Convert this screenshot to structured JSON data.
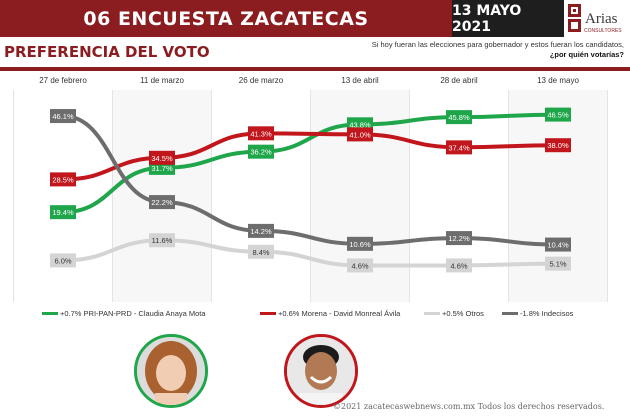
{
  "header": {
    "title": "06 ENCUESTA ZACATECAS",
    "date": "13 MAYO 2021",
    "logo_text": "Arias",
    "logo_sub": "CONSULTORES"
  },
  "section": {
    "title": "PREFERENCIA DEL VOTO",
    "question_line1": "Si hoy fueran las elecciones para gobernador y estos fueran los candidatos,",
    "question_line2": "¿por quién votarías?"
  },
  "chart_data": {
    "type": "line",
    "categories": [
      "27 de febrero",
      "11 de marzo",
      "26 de marzo",
      "13 de abril",
      "28 de abril",
      "13 de mayo"
    ],
    "ylim": [
      0,
      50
    ],
    "grid": "vertical",
    "legend_position": "bottom",
    "series": [
      {
        "name": "+0.7% PRI-PAN-PRD - Claudia Anaya Mota",
        "color": "#1fa64a",
        "values": [
          19.4,
          31.7,
          36.2,
          43.8,
          45.8,
          46.5
        ],
        "labels": [
          "19.4%",
          "31.7%",
          "36.2%",
          "43.8%",
          "45.8%",
          "46.5%"
        ]
      },
      {
        "name": "+0.6% Morena - David Monreal Ávila",
        "color": "#c0161c",
        "values": [
          28.5,
          34.5,
          41.3,
          41.0,
          37.4,
          38.0
        ],
        "labels": [
          "28.5%",
          "34.5%",
          "41.3%",
          "41.0%",
          "37.4%",
          "38.0%"
        ]
      },
      {
        "name": "+0.5% Otros",
        "color": "#d4d4d4",
        "values": [
          6.0,
          11.6,
          8.4,
          4.6,
          4.6,
          5.1
        ],
        "labels": [
          "6.0%",
          "11.6%",
          "8.4%",
          "4.6%",
          "4.6%",
          "5.1%"
        ]
      },
      {
        "name": "-1.8% Indecisos",
        "color": "#6d6d6d",
        "values": [
          46.1,
          22.2,
          14.2,
          10.6,
          12.2,
          10.4
        ],
        "labels": [
          "46.1%",
          "22.2%",
          "14.2%",
          "10.6%",
          "12.2%",
          "10.4%"
        ]
      }
    ]
  },
  "footer": {
    "watermark": "©2021 zacatecaswebnews.com.mx Todos los derechos reservados."
  }
}
